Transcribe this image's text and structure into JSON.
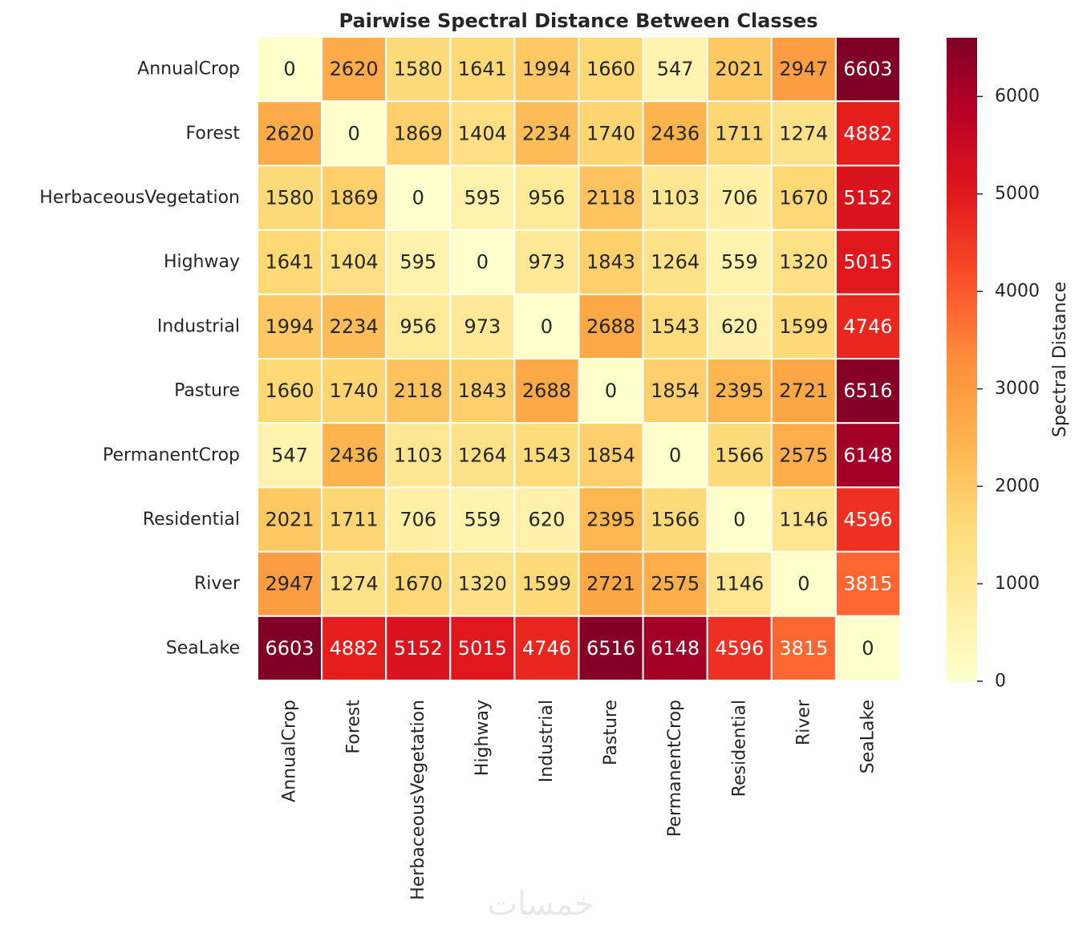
{
  "chart_data": {
    "type": "heatmap",
    "title": "Pairwise Spectral Distance Between Classes",
    "x_categories": [
      "AnnualCrop",
      "Forest",
      "HerbaceousVegetation",
      "Highway",
      "Industrial",
      "Pasture",
      "PermanentCrop",
      "Residential",
      "River",
      "SeaLake"
    ],
    "y_categories": [
      "AnnualCrop",
      "Forest",
      "HerbaceousVegetation",
      "Highway",
      "Industrial",
      "Pasture",
      "PermanentCrop",
      "Residential",
      "River",
      "SeaLake"
    ],
    "values": [
      [
        0,
        2620,
        1580,
        1641,
        1994,
        1660,
        547,
        2021,
        2947,
        6603
      ],
      [
        2620,
        0,
        1869,
        1404,
        2234,
        1740,
        2436,
        1711,
        1274,
        4882
      ],
      [
        1580,
        1869,
        0,
        595,
        956,
        2118,
        1103,
        706,
        1670,
        5152
      ],
      [
        1641,
        1404,
        595,
        0,
        973,
        1843,
        1264,
        559,
        1320,
        5015
      ],
      [
        1994,
        2234,
        956,
        973,
        0,
        2688,
        1543,
        620,
        1599,
        4746
      ],
      [
        1660,
        1740,
        2118,
        1843,
        2688,
        0,
        1854,
        2395,
        2721,
        6516
      ],
      [
        547,
        2436,
        1103,
        1264,
        1543,
        1854,
        0,
        1566,
        2575,
        6148
      ],
      [
        2021,
        1711,
        706,
        559,
        620,
        2395,
        1566,
        0,
        1146,
        4596
      ],
      [
        2947,
        1274,
        1670,
        1320,
        1599,
        2721,
        2575,
        1146,
        0,
        3815
      ],
      [
        6603,
        4882,
        5152,
        5015,
        4746,
        6516,
        6148,
        4596,
        3815,
        0
      ]
    ],
    "colormap": "YlOrRd",
    "color_range": [
      0,
      6603
    ],
    "colorbar": {
      "label": "Spectral Distance",
      "ticks": [
        0,
        1000,
        2000,
        3000,
        4000,
        5000,
        6000
      ]
    },
    "annotations": true,
    "cell_border_color": "#ffffff"
  },
  "watermark": "خمسات"
}
